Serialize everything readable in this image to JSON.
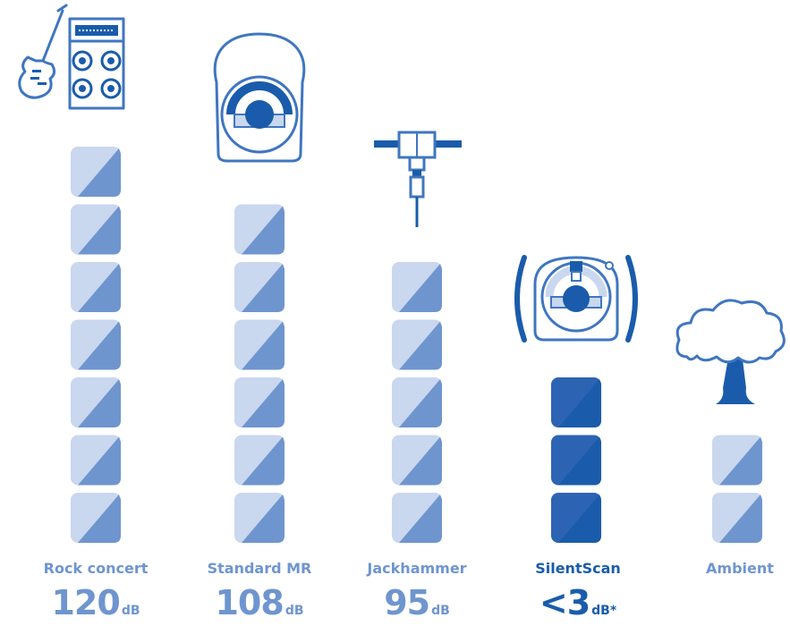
{
  "colors": {
    "light_block": "#c9d7ef",
    "mid_block": "#6f95cf",
    "dark_block": "#2c64b3",
    "darkest_block": "#1a5cab",
    "outline": "#3f76c0",
    "label_light": "#6f95cf",
    "label_dark": "#1a5cab"
  },
  "chart_data": {
    "type": "bar",
    "categories": [
      "Rock concert",
      "Standard MR",
      "Jackhammer",
      "SilentScan",
      "Ambient"
    ],
    "values": [
      7,
      6,
      5,
      3,
      2
    ],
    "series": [
      {
        "values": [
          7,
          6,
          5,
          3,
          2
        ]
      }
    ],
    "highlight": "SilentScan",
    "icons": [
      "guitar-amplifier-icon",
      "mr-scanner-icon",
      "jackhammer-icon",
      "silentscan-scanner-icon",
      "tree-icon"
    ],
    "value_labels": [
      {
        "prefix": "",
        "number": "120",
        "unit": "dB"
      },
      {
        "prefix": "",
        "number": "108",
        "unit": "dB"
      },
      {
        "prefix": "",
        "number": "95",
        "unit": "dB"
      },
      {
        "prefix": "<",
        "number": "3",
        "unit": "dB*"
      },
      {
        "prefix": "",
        "number": "",
        "unit": ""
      }
    ],
    "title": "",
    "xlabel": "",
    "ylabel": "",
    "grid": false,
    "legend": "none"
  }
}
